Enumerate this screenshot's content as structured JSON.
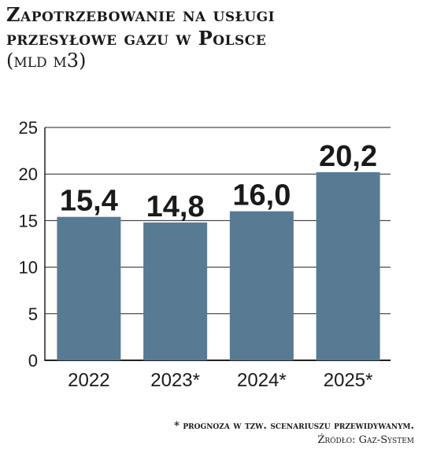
{
  "header": {
    "title_line1": "Zapotrzebowanie na usługi",
    "title_line2": "przesyłowe gazu w Polsce",
    "unit": "(mld m3)"
  },
  "chart_data": {
    "type": "bar",
    "categories": [
      "2022",
      "2023*",
      "2024*",
      "2025*"
    ],
    "values": [
      15.4,
      14.8,
      16.0,
      20.2
    ],
    "value_labels": [
      "15,4",
      "14,8",
      "16,0",
      "20,2"
    ],
    "yticks": [
      "0",
      "5",
      "10",
      "15",
      "20",
      "25"
    ],
    "ylim": [
      0,
      25
    ],
    "grid": true,
    "bar_color": "#587a93"
  },
  "footer": {
    "note": "* prognoza w tzw. scenariuszu przewidywanym.",
    "source": "Źródło: Gaz-System"
  }
}
